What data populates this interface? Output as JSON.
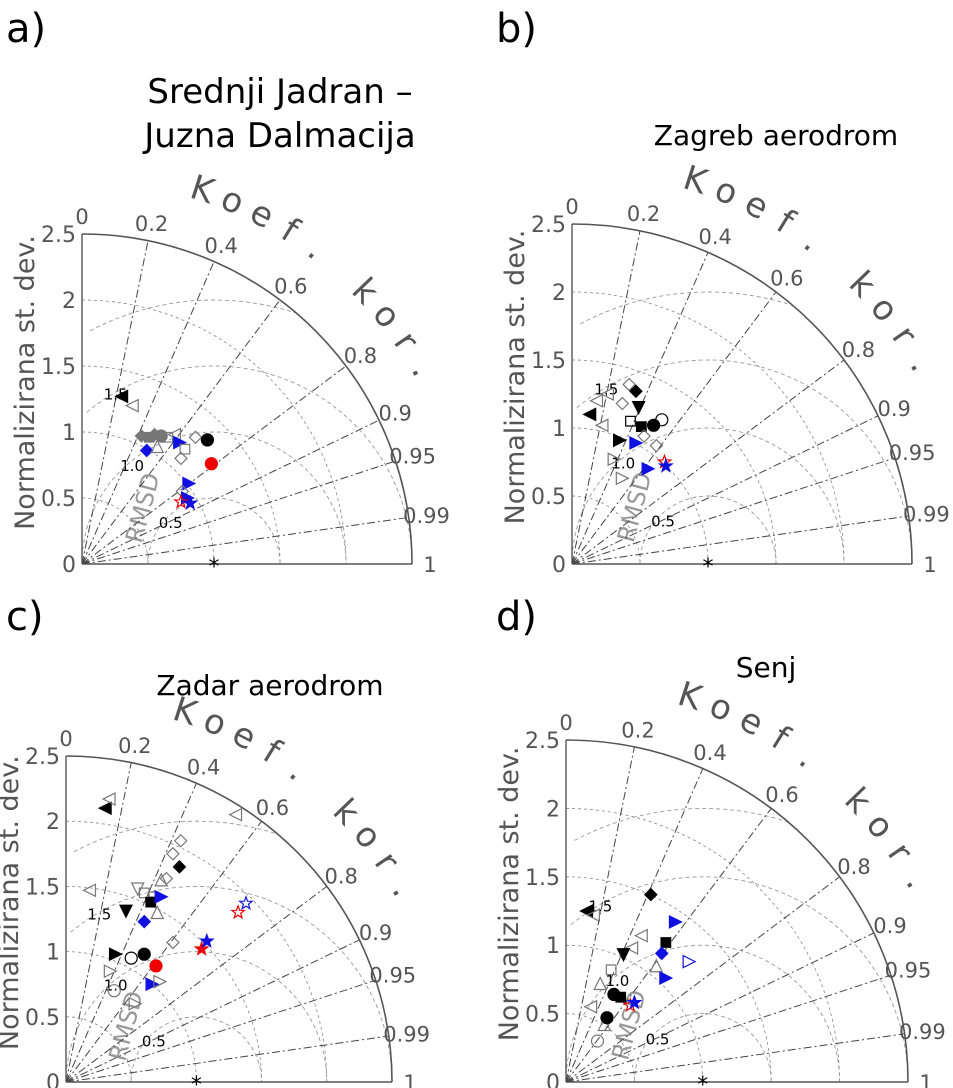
{
  "chart_data": [
    {
      "type": "scatter",
      "panel_label": "a)",
      "title": "Srednji Jadran – Juzna Dalmacija",
      "ylabel": "Normalizirana st. dev.",
      "corr_label": "Koef. kor.",
      "rmsd_label": "RMSD",
      "ylim": [
        0,
        2.5
      ],
      "std_ticks": [
        "0",
        "0.5",
        "1",
        "1.5",
        "2",
        "2.5"
      ],
      "corr_ticks": [
        "0",
        "0.2",
        "0.4",
        "0.6",
        "0.8",
        "0.9",
        "0.95",
        "0.99",
        "1"
      ],
      "corr_values": [
        0,
        0.2,
        0.4,
        0.6,
        0.8,
        0.9,
        0.95,
        0.99,
        1
      ],
      "rmsd_labels": [
        "0.5",
        "1.0",
        "1.5"
      ],
      "reference": {
        "std": 1.0,
        "corr": 1.0
      },
      "points": [
        {
          "x": 0.3,
          "y": 1.27,
          "m": "tri-left",
          "c": "black",
          "f": true
        },
        {
          "x": 0.38,
          "y": 1.2,
          "m": "tri-left",
          "c": "gray",
          "f": false
        },
        {
          "x": 0.45,
          "y": 0.97,
          "m": "diamond",
          "c": "gray",
          "f": true
        },
        {
          "x": 0.51,
          "y": 0.96,
          "m": "square",
          "c": "gray",
          "f": true
        },
        {
          "x": 0.55,
          "y": 0.98,
          "m": "diamond",
          "c": "gray",
          "f": true
        },
        {
          "x": 0.6,
          "y": 0.97,
          "m": "circle",
          "c": "gray",
          "f": true
        },
        {
          "x": 0.65,
          "y": 0.96,
          "m": "square",
          "c": "gray",
          "f": false
        },
        {
          "x": 0.7,
          "y": 0.98,
          "m": "tri-left",
          "c": "gray",
          "f": false
        },
        {
          "x": 0.49,
          "y": 0.86,
          "m": "diamond",
          "c": "blue",
          "f": true
        },
        {
          "x": 0.57,
          "y": 0.89,
          "m": "tri-up",
          "c": "gray",
          "f": false
        },
        {
          "x": 0.74,
          "y": 0.92,
          "m": "tri-right",
          "c": "blue",
          "f": true
        },
        {
          "x": 0.78,
          "y": 0.87,
          "m": "square",
          "c": "gray",
          "f": false
        },
        {
          "x": 0.86,
          "y": 0.96,
          "m": "diamond",
          "c": "gray",
          "f": false
        },
        {
          "x": 0.95,
          "y": 0.94,
          "m": "circle",
          "c": "black",
          "f": true
        },
        {
          "x": 0.75,
          "y": 0.8,
          "m": "diamond",
          "c": "gray",
          "f": false
        },
        {
          "x": 0.98,
          "y": 0.76,
          "m": "circle",
          "c": "red",
          "f": true
        },
        {
          "x": 0.81,
          "y": 0.61,
          "m": "tri-right",
          "c": "blue",
          "f": true
        },
        {
          "x": 0.76,
          "y": 0.55,
          "m": "diamond",
          "c": "gray",
          "f": false
        },
        {
          "x": 0.8,
          "y": 0.5,
          "m": "tri-right",
          "c": "blue",
          "f": true
        },
        {
          "x": 0.75,
          "y": 0.47,
          "m": "star",
          "c": "red",
          "f": false
        },
        {
          "x": 0.82,
          "y": 0.46,
          "m": "star",
          "c": "blue",
          "f": true
        }
      ]
    },
    {
      "type": "scatter",
      "panel_label": "b)",
      "title": "Zagreb aerodrom",
      "ylabel": "Normalizirana st. dev.",
      "corr_label": "Koef. kor.",
      "rmsd_label": "RMSD",
      "ylim": [
        0,
        2.5
      ],
      "std_ticks": [
        "0",
        "0.5",
        "1",
        "1.5",
        "2",
        "2.5"
      ],
      "corr_ticks": [
        "0",
        "0.2",
        "0.4",
        "0.6",
        "0.8",
        "0.9",
        "0.95",
        "0.99",
        "1"
      ],
      "corr_values": [
        0,
        0.2,
        0.4,
        0.6,
        0.8,
        0.9,
        0.95,
        0.99,
        1
      ],
      "rmsd_labels": [
        "0.5",
        "1.0",
        "1.5"
      ],
      "reference": {
        "std": 1.0,
        "corr": 1.0
      },
      "points": [
        {
          "x": 0.13,
          "y": 1.1,
          "m": "tri-left",
          "c": "black",
          "f": true
        },
        {
          "x": 0.18,
          "y": 1.2,
          "m": "tri-left",
          "c": "gray",
          "f": false
        },
        {
          "x": 0.26,
          "y": 1.25,
          "m": "tri-left",
          "c": "gray",
          "f": false
        },
        {
          "x": 0.22,
          "y": 1.02,
          "m": "tri-left",
          "c": "gray",
          "f": false
        },
        {
          "x": 0.35,
          "y": 0.91,
          "m": "tri-right",
          "c": "black",
          "f": true
        },
        {
          "x": 0.37,
          "y": 1.18,
          "m": "diamond",
          "c": "gray",
          "f": false
        },
        {
          "x": 0.42,
          "y": 1.32,
          "m": "diamond",
          "c": "gray",
          "f": false
        },
        {
          "x": 0.47,
          "y": 1.27,
          "m": "diamond",
          "c": "black",
          "f": true
        },
        {
          "x": 0.43,
          "y": 1.05,
          "m": "square",
          "c": "black",
          "f": false
        },
        {
          "x": 0.49,
          "y": 1.15,
          "m": "tri-down",
          "c": "black",
          "f": true
        },
        {
          "x": 0.51,
          "y": 1.01,
          "m": "square",
          "c": "black",
          "f": true
        },
        {
          "x": 0.6,
          "y": 1.02,
          "m": "circle",
          "c": "black",
          "f": true
        },
        {
          "x": 0.66,
          "y": 1.06,
          "m": "circle",
          "c": "black",
          "f": false
        },
        {
          "x": 0.47,
          "y": 0.89,
          "m": "tri-right",
          "c": "blue",
          "f": true
        },
        {
          "x": 0.53,
          "y": 0.94,
          "m": "diamond",
          "c": "gray",
          "f": false
        },
        {
          "x": 0.62,
          "y": 0.87,
          "m": "diamond",
          "c": "gray",
          "f": false
        },
        {
          "x": 0.31,
          "y": 0.77,
          "m": "tri-right",
          "c": "gray",
          "f": false
        },
        {
          "x": 0.37,
          "y": 0.63,
          "m": "tri-right",
          "c": "gray",
          "f": false
        },
        {
          "x": 0.56,
          "y": 0.7,
          "m": "tri-right",
          "c": "blue",
          "f": true
        },
        {
          "x": 0.68,
          "y": 0.75,
          "m": "star",
          "c": "red",
          "f": false
        },
        {
          "x": 0.69,
          "y": 0.72,
          "m": "star",
          "c": "blue",
          "f": true
        }
      ]
    },
    {
      "type": "scatter",
      "panel_label": "c)",
      "title": "Zadar aerodrom",
      "ylabel": "Normalizirana st. dev.",
      "corr_label": "Koef. kor.",
      "rmsd_label": "RMSD",
      "ylim": [
        0,
        2.5
      ],
      "std_ticks": [
        "0",
        "0.5",
        "1",
        "1.5",
        "2",
        "2.5"
      ],
      "corr_ticks": [
        "0",
        "0.2",
        "0.4",
        "0.6",
        "0.8",
        "0.9",
        "0.95",
        "0.99",
        "1"
      ],
      "corr_values": [
        0,
        0.2,
        0.4,
        0.6,
        0.8,
        0.9,
        0.95,
        0.99,
        1
      ],
      "rmsd_labels": [
        "0.5",
        "1.0",
        "1.5"
      ],
      "reference": {
        "std": 1.0,
        "corr": 1.0
      },
      "points": [
        {
          "x": 0.3,
          "y": 2.1,
          "m": "tri-left",
          "c": "black",
          "f": true
        },
        {
          "x": 0.33,
          "y": 2.17,
          "m": "tri-left",
          "c": "gray",
          "f": false
        },
        {
          "x": 0.18,
          "y": 1.47,
          "m": "tri-left",
          "c": "gray",
          "f": false
        },
        {
          "x": 0.46,
          "y": 1.31,
          "m": "tri-down",
          "c": "black",
          "f": true
        },
        {
          "x": 0.55,
          "y": 1.48,
          "m": "tri-down",
          "c": "gray",
          "f": false
        },
        {
          "x": 0.6,
          "y": 1.45,
          "m": "square",
          "c": "gray",
          "f": false
        },
        {
          "x": 0.67,
          "y": 1.42,
          "m": "square",
          "c": "gray",
          "f": false
        },
        {
          "x": 0.77,
          "y": 1.56,
          "m": "diamond",
          "c": "gray",
          "f": false
        },
        {
          "x": 0.87,
          "y": 1.65,
          "m": "diamond",
          "c": "black",
          "f": true
        },
        {
          "x": 0.82,
          "y": 1.75,
          "m": "diamond",
          "c": "gray",
          "f": false
        },
        {
          "x": 0.88,
          "y": 1.85,
          "m": "diamond",
          "c": "gray",
          "f": false
        },
        {
          "x": 1.3,
          "y": 2.05,
          "m": "tri-left",
          "c": "gray",
          "f": false
        },
        {
          "x": 0.6,
          "y": 1.23,
          "m": "diamond",
          "c": "blue",
          "f": true
        },
        {
          "x": 0.65,
          "y": 1.38,
          "m": "square",
          "c": "black",
          "f": true
        },
        {
          "x": 0.7,
          "y": 1.3,
          "m": "tri-up",
          "c": "gray",
          "f": false
        },
        {
          "x": 0.73,
          "y": 1.42,
          "m": "tri-right",
          "c": "blue",
          "f": true
        },
        {
          "x": 0.73,
          "y": 1.55,
          "m": "tri-up",
          "c": "gray",
          "f": false
        },
        {
          "x": 0.82,
          "y": 1.07,
          "m": "diamond",
          "c": "gray",
          "f": false
        },
        {
          "x": 0.38,
          "y": 0.98,
          "m": "tri-right",
          "c": "black",
          "f": true
        },
        {
          "x": 0.5,
          "y": 0.95,
          "m": "circle",
          "c": "black",
          "f": false
        },
        {
          "x": 0.6,
          "y": 0.98,
          "m": "circle",
          "c": "black",
          "f": true
        },
        {
          "x": 0.34,
          "y": 0.85,
          "m": "tri-right",
          "c": "gray",
          "f": false
        },
        {
          "x": 0.37,
          "y": 0.7,
          "m": "circle",
          "c": "gray",
          "f": false
        },
        {
          "x": 0.69,
          "y": 0.89,
          "m": "circle",
          "c": "red",
          "f": true
        },
        {
          "x": 0.66,
          "y": 0.75,
          "m": "tri-right",
          "c": "blue",
          "f": true
        },
        {
          "x": 0.72,
          "y": 0.77,
          "m": "tri-right",
          "c": "gray",
          "f": false
        },
        {
          "x": 0.53,
          "y": 0.6,
          "m": "tri-right",
          "c": "gray",
          "f": false
        },
        {
          "x": 1.04,
          "y": 1.02,
          "m": "star",
          "c": "red",
          "f": true
        },
        {
          "x": 1.08,
          "y": 1.08,
          "m": "star",
          "c": "blue",
          "f": true
        },
        {
          "x": 1.32,
          "y": 1.3,
          "m": "star",
          "c": "red",
          "f": false
        },
        {
          "x": 1.38,
          "y": 1.37,
          "m": "star",
          "c": "blue",
          "f": false
        }
      ]
    },
    {
      "type": "scatter",
      "panel_label": "d)",
      "title": "Senj",
      "ylabel": "Normalizirana st. dev.",
      "corr_label": "Koef. kor.",
      "rmsd_label": "RMSD",
      "ylim": [
        0,
        2.5
      ],
      "std_ticks": [
        "0",
        "0.5",
        "1",
        "1.5",
        "2",
        "2.5"
      ],
      "corr_ticks": [
        "0",
        "0.2",
        "0.4",
        "0.6",
        "0.8",
        "0.9",
        "0.95",
        "0.99",
        "1"
      ],
      "corr_values": [
        0,
        0.2,
        0.4,
        0.6,
        0.8,
        0.9,
        0.95,
        0.99,
        1
      ],
      "rmsd_labels": [
        "0.5",
        "1.0",
        "1.5"
      ],
      "reference": {
        "std": 1.0,
        "corr": 1.0
      },
      "points": [
        {
          "x": 0.15,
          "y": 1.25,
          "m": "tri-left",
          "c": "black",
          "f": true
        },
        {
          "x": 0.2,
          "y": 1.22,
          "m": "tri-left",
          "c": "gray",
          "f": false
        },
        {
          "x": 0.62,
          "y": 1.37,
          "m": "diamond",
          "c": "black",
          "f": true
        },
        {
          "x": 0.55,
          "y": 1.07,
          "m": "tri-left",
          "c": "gray",
          "f": false
        },
        {
          "x": 0.48,
          "y": 0.98,
          "m": "tri-left",
          "c": "gray",
          "f": false
        },
        {
          "x": 0.73,
          "y": 1.02,
          "m": "square",
          "c": "black",
          "f": true
        },
        {
          "x": 0.8,
          "y": 1.17,
          "m": "tri-right",
          "c": "blue",
          "f": true
        },
        {
          "x": 0.42,
          "y": 0.93,
          "m": "tri-down",
          "c": "black",
          "f": true
        },
        {
          "x": 0.7,
          "y": 0.94,
          "m": "diamond",
          "c": "blue",
          "f": true
        },
        {
          "x": 0.66,
          "y": 0.85,
          "m": "tri-up",
          "c": "gray",
          "f": false
        },
        {
          "x": 0.33,
          "y": 0.82,
          "m": "square",
          "c": "gray",
          "f": false
        },
        {
          "x": 0.25,
          "y": 0.72,
          "m": "tri-up",
          "c": "gray",
          "f": false
        },
        {
          "x": 0.18,
          "y": 0.55,
          "m": "tri-left",
          "c": "gray",
          "f": false
        },
        {
          "x": 0.35,
          "y": 0.64,
          "m": "circle",
          "c": "black",
          "f": true
        },
        {
          "x": 0.4,
          "y": 0.62,
          "m": "square",
          "c": "black",
          "f": true
        },
        {
          "x": 0.28,
          "y": 0.42,
          "m": "tri-up",
          "c": "gray",
          "f": false
        },
        {
          "x": 0.23,
          "y": 0.3,
          "m": "circle",
          "c": "gray",
          "f": false
        },
        {
          "x": 0.3,
          "y": 0.47,
          "m": "circle",
          "c": "black",
          "f": true
        },
        {
          "x": 0.73,
          "y": 0.76,
          "m": "tri-right",
          "c": "blue",
          "f": true
        },
        {
          "x": 0.9,
          "y": 0.88,
          "m": "tri-right",
          "c": "blue",
          "f": false
        },
        {
          "x": 0.47,
          "y": 0.56,
          "m": "star",
          "c": "red",
          "f": false
        },
        {
          "x": 0.5,
          "y": 0.58,
          "m": "star",
          "c": "blue",
          "f": true
        }
      ]
    }
  ],
  "colors": {
    "black": "#000000",
    "gray": "#777777",
    "blue": "#1010e0",
    "red": "#ee0000",
    "arc": "#555555",
    "grid": "#444444",
    "rmsd": "#999999"
  }
}
